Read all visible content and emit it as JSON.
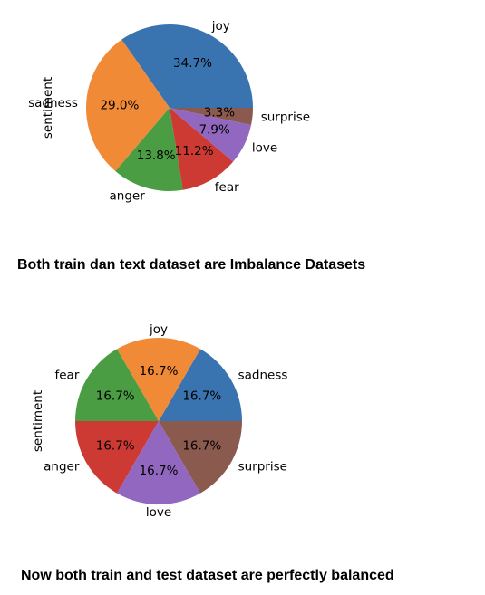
{
  "chart_data": [
    {
      "type": "pie",
      "ylabel": "sentiment",
      "slices": [
        {
          "label": "joy",
          "value": 34.7,
          "pct_label": "34.7%",
          "color": "#3a74b0"
        },
        {
          "label": "sadness",
          "value": 29.0,
          "pct_label": "29.0%",
          "color": "#f08a36"
        },
        {
          "label": "anger",
          "value": 13.8,
          "pct_label": "13.8%",
          "color": "#4a9d42"
        },
        {
          "label": "fear",
          "value": 11.2,
          "pct_label": "11.2%",
          "color": "#cc3a33"
        },
        {
          "label": "love",
          "value": 7.9,
          "pct_label": "7.9%",
          "color": "#9267bf"
        },
        {
          "label": "surprise",
          "value": 3.3,
          "pct_label": "3.3%",
          "color": "#8b5a4e"
        }
      ]
    },
    {
      "type": "pie",
      "ylabel": "sentiment",
      "slices": [
        {
          "label": "sadness",
          "value": 16.7,
          "pct_label": "16.7%",
          "color": "#3a74b0"
        },
        {
          "label": "joy",
          "value": 16.7,
          "pct_label": "16.7%",
          "color": "#f08a36"
        },
        {
          "label": "fear",
          "value": 16.7,
          "pct_label": "16.7%",
          "color": "#4a9d42"
        },
        {
          "label": "anger",
          "value": 16.7,
          "pct_label": "16.7%",
          "color": "#cc3a33"
        },
        {
          "label": "love",
          "value": 16.7,
          "pct_label": "16.7%",
          "color": "#9267bf"
        },
        {
          "label": "surprise",
          "value": 16.7,
          "pct_label": "16.7%",
          "color": "#8b5a4e"
        }
      ]
    }
  ],
  "captions": {
    "first": "Both train dan text dataset are Imbalance Datasets",
    "second": "Now both train and test dataset are perfectly balanced"
  }
}
